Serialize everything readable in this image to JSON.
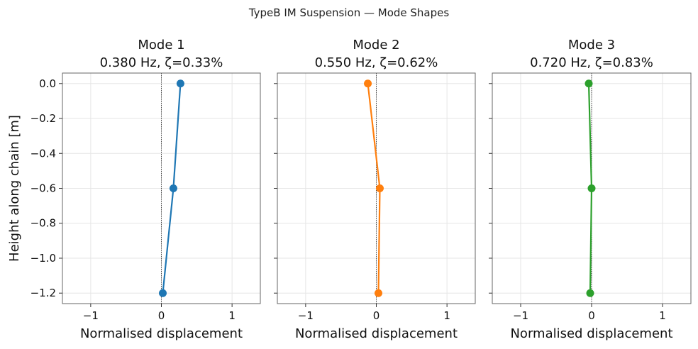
{
  "figure": {
    "suptitle": "TypeB IM Suspension — Mode Shapes"
  },
  "chart_data": [
    {
      "type": "line",
      "title_line1": "Mode 1",
      "title_line2": "0.380 Hz, ζ=0.33%",
      "xlabel": "Normalised displacement",
      "ylabel": "Height along chain [m]",
      "xlim": [
        -1.4,
        1.4
      ],
      "ylim": [
        -1.26,
        0.06
      ],
      "xticks": [
        -1,
        0,
        1
      ],
      "xtick_labels": [
        "−1",
        "0",
        "1"
      ],
      "yticks": [
        0.0,
        -0.2,
        -0.4,
        -0.6,
        -0.8,
        -1.0,
        -1.2
      ],
      "ytick_labels": [
        "0.0",
        "−0.2",
        "−0.4",
        "−0.6",
        "−0.8",
        "−1.0",
        "−1.2"
      ],
      "grid": true,
      "color": "#1f77b4",
      "x": [
        0.27,
        0.17,
        0.02
      ],
      "y": [
        0.0,
        -0.6,
        -1.2
      ]
    },
    {
      "type": "line",
      "title_line1": "Mode 2",
      "title_line2": "0.550 Hz, ζ=0.62%",
      "xlabel": "Normalised displacement",
      "ylabel": "",
      "xlim": [
        -1.4,
        1.4
      ],
      "ylim": [
        -1.26,
        0.06
      ],
      "xticks": [
        -1,
        0,
        1
      ],
      "xtick_labels": [
        "−1",
        "0",
        "1"
      ],
      "yticks": [
        0.0,
        -0.2,
        -0.4,
        -0.6,
        -0.8,
        -1.0,
        -1.2
      ],
      "ytick_labels": [],
      "grid": true,
      "color": "#ff7f0e",
      "x": [
        -0.12,
        0.05,
        0.03
      ],
      "y": [
        0.0,
        -0.6,
        -1.2
      ]
    },
    {
      "type": "line",
      "title_line1": "Mode 3",
      "title_line2": "0.720 Hz, ζ=0.83%",
      "xlabel": "Normalised displacement",
      "ylabel": "",
      "xlim": [
        -1.4,
        1.4
      ],
      "ylim": [
        -1.26,
        0.06
      ],
      "xticks": [
        -1,
        0,
        1
      ],
      "xtick_labels": [
        "−1",
        "0",
        "1"
      ],
      "yticks": [
        0.0,
        -0.2,
        -0.4,
        -0.6,
        -0.8,
        -1.0,
        -1.2
      ],
      "ytick_labels": [],
      "grid": true,
      "color": "#2ca02c",
      "x": [
        -0.04,
        0.0,
        -0.02
      ],
      "y": [
        0.0,
        -0.6,
        -1.2
      ]
    }
  ]
}
